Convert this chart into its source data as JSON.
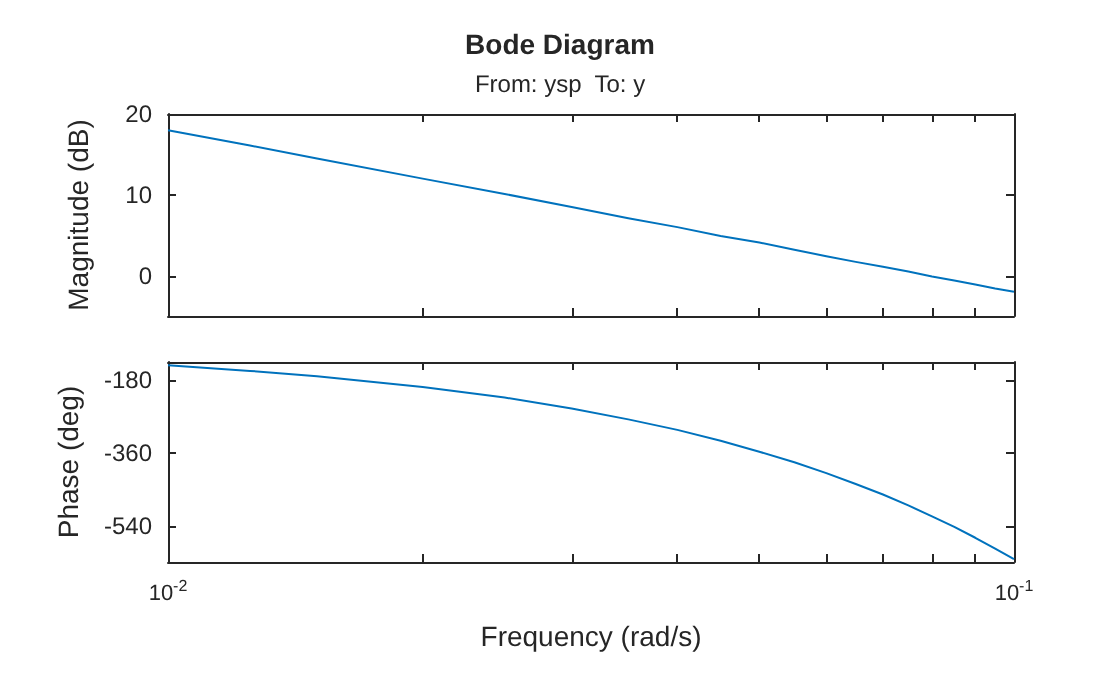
{
  "chart_data": [
    {
      "type": "line",
      "title": "Bode Diagram",
      "subtitle": "From: ysp  To: y",
      "ylabel": "Magnitude (dB)",
      "log": "x",
      "tick_labels": "y",
      "marker": "none",
      "color": "#0072bd",
      "x": [
        0.01,
        0.0125,
        0.015,
        0.02,
        0.025,
        0.03,
        0.035,
        0.04,
        0.045,
        0.05,
        0.055,
        0.06,
        0.065,
        0.07,
        0.075,
        0.08,
        0.085,
        0.09,
        0.095,
        0.1
      ],
      "values": [
        18,
        16.1,
        14.5,
        12,
        10.1,
        8.5,
        7.1,
        6,
        4.9,
        4.1,
        3.2,
        2.4,
        1.7,
        1.1,
        0.5,
        -0.1,
        -0.6,
        -1.1,
        -1.6,
        -2
      ],
      "xlim": [
        0.01,
        0.1
      ],
      "xticks": [
        {
          "value": 0.01,
          "label": null
        },
        {
          "value": 0.02,
          "label": null
        },
        {
          "value": 0.03,
          "label": null
        },
        {
          "value": 0.04,
          "label": null
        },
        {
          "value": 0.05,
          "label": null
        },
        {
          "value": 0.06,
          "label": null
        },
        {
          "value": 0.07,
          "label": null
        },
        {
          "value": 0.08,
          "label": null
        },
        {
          "value": 0.09,
          "label": null
        },
        {
          "value": 0.1,
          "label": null
        }
      ],
      "ylim": [
        -5,
        20
      ],
      "yticks": [
        0,
        10,
        20
      ]
    },
    {
      "type": "line",
      "xlabel": "Frequency (rad/s)",
      "ylabel": "Phase (deg)",
      "log": "x",
      "marker": "none",
      "color": "#0072bd",
      "x": [
        0.01,
        0.0125,
        0.015,
        0.02,
        0.025,
        0.03,
        0.035,
        0.04,
        0.045,
        0.05,
        0.055,
        0.06,
        0.065,
        0.07,
        0.075,
        0.08,
        0.085,
        0.09,
        0.095,
        0.1
      ],
      "values": [
        -143,
        -157,
        -170,
        -197,
        -223,
        -250,
        -277,
        -303,
        -330,
        -357,
        -383,
        -410,
        -437,
        -463,
        -490,
        -517,
        -543,
        -570,
        -597,
        -623
      ],
      "xlim": [
        0.01,
        0.1
      ],
      "xticks": [
        {
          "value": 0.01,
          "label": "10$^{-2}$"
        },
        {
          "value": 0.02,
          "label": null
        },
        {
          "value": 0.03,
          "label": null
        },
        {
          "value": 0.04,
          "label": null
        },
        {
          "value": 0.05,
          "label": null
        },
        {
          "value": 0.06,
          "label": null
        },
        {
          "value": 0.07,
          "label": null
        },
        {
          "value": 0.08,
          "label": null
        },
        {
          "value": 0.09,
          "label": null
        },
        {
          "value": 0.1,
          "label": "10$^{-1}$"
        }
      ],
      "ylim": [
        -630,
        -135
      ],
      "yticks": [
        -540,
        -360,
        -180
      ]
    }
  ]
}
